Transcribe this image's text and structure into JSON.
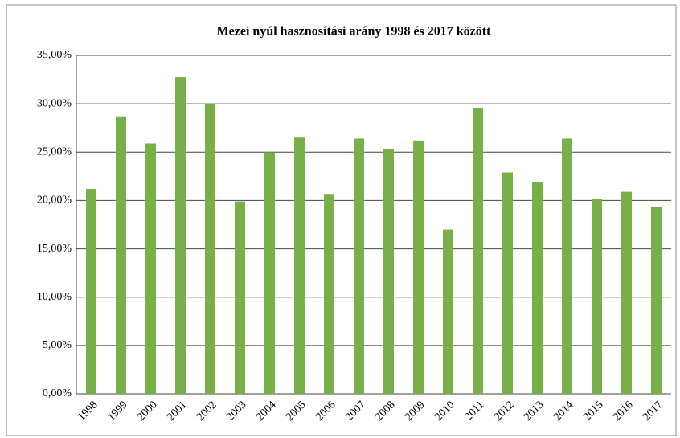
{
  "chart_data": {
    "type": "bar",
    "title": "Mezei nyúl hasznosítási arány 1998 és 2017 között",
    "categories": [
      "1998",
      "1999",
      "2000",
      "2001",
      "2002",
      "2003",
      "2004",
      "2005",
      "2006",
      "2007",
      "2008",
      "2009",
      "2010",
      "2011",
      "2012",
      "2013",
      "2014",
      "2015",
      "2016",
      "2017"
    ],
    "values": [
      21.2,
      28.7,
      25.9,
      32.75,
      30.0,
      19.9,
      25.0,
      26.5,
      20.6,
      26.4,
      25.3,
      26.2,
      17.0,
      29.6,
      22.9,
      21.9,
      26.4,
      20.2,
      20.9,
      19.3
    ],
    "color": "#77b046",
    "ylim": [
      0,
      35
    ],
    "yticks": [
      {
        "value": 0,
        "label": "0,00%"
      },
      {
        "value": 5,
        "label": "5,00%"
      },
      {
        "value": 10,
        "label": "10,00%"
      },
      {
        "value": 15,
        "label": "15,00%"
      },
      {
        "value": 20,
        "label": "20,00%"
      },
      {
        "value": 25,
        "label": "25,00%"
      },
      {
        "value": 30,
        "label": "30,00%"
      },
      {
        "value": 35,
        "label": "35,00%"
      }
    ],
    "grid": true
  }
}
